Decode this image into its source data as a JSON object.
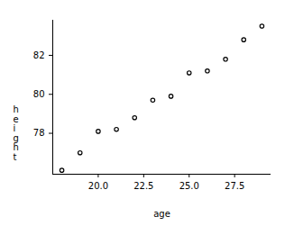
{
  "chart_data": {
    "type": "scatter",
    "xlabel": "age",
    "ylabel": "height",
    "x": [
      18,
      19,
      20,
      21,
      22,
      23,
      24,
      25,
      26,
      27,
      28,
      29
    ],
    "values": [
      76.1,
      77.0,
      78.1,
      78.2,
      78.8,
      79.7,
      79.9,
      81.1,
      81.2,
      81.8,
      82.8,
      83.5
    ],
    "color": "#000000",
    "marker": "circle",
    "xlim": [
      17.5,
      29.5
    ],
    "xticks": [
      {
        "value": 20,
        "label": "20.0"
      },
      22.5,
      {
        "value": 25,
        "label": "25.0"
      },
      27.5
    ],
    "ylim": [
      75.9,
      83.8
    ],
    "yticks": [
      78,
      80,
      82
    ],
    "grid": false
  }
}
